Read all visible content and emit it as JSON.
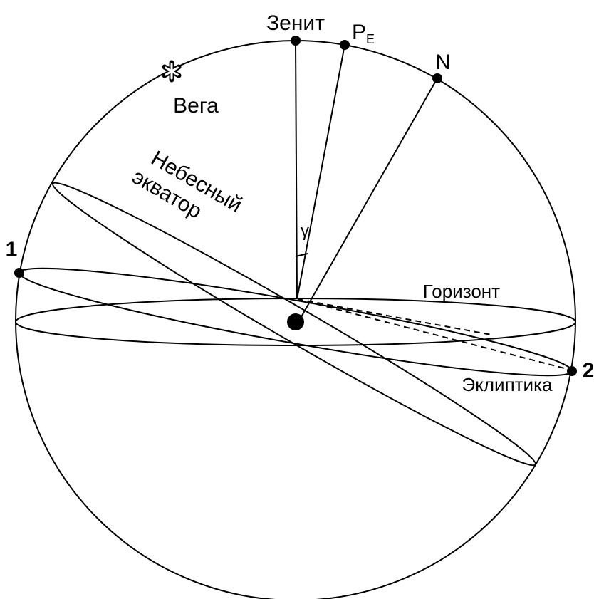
{
  "labels": {
    "zenith": "Зенит",
    "pole": "P",
    "pole_sub": "E",
    "north": "N",
    "vega": "Вега",
    "equator_1": "Небесный",
    "equator_2": "экватор",
    "gamma": "γ",
    "point_1": "1",
    "point_2": "2",
    "horizon": "Горизонт",
    "ecliptic": "Эклиптика"
  }
}
